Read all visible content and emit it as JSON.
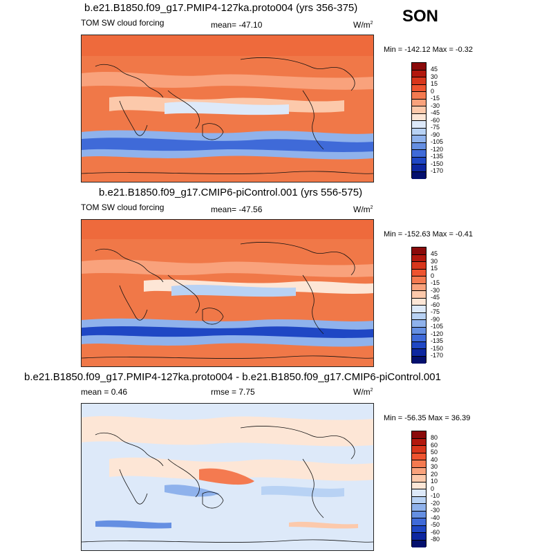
{
  "season": "SON",
  "panels": [
    {
      "title": "b.e21.B1850.f09_g17.PMIP4-127ka.proto004 (yrs 356-375)",
      "left_label": "TOM SW cloud forcing",
      "mid_label": "mean= -47.10",
      "units": "W/m",
      "units_sup": "2",
      "minmax": "Min = -142.12 Max =  -0.32",
      "legend_labels": [
        "45",
        "30",
        "15",
        "0",
        "-15",
        "-30",
        "-45",
        "-60",
        "-75",
        "-90",
        "-105",
        "-120",
        "-135",
        "-150",
        "-170"
      ],
      "legend_colors": [
        "#8a0a0a",
        "#b2180e",
        "#d8361c",
        "#ee5430",
        "#f47a50",
        "#f9a27c",
        "#fcc9ab",
        "#fde6d6",
        "#dde9f9",
        "#b8d2f4",
        "#8fb2ec",
        "#658fe2",
        "#3f6ad8",
        "#1f47c4",
        "#0d27a0",
        "#04106e"
      ]
    },
    {
      "title": "b.e21.B1850.f09_g17.CMIP6-piControl.001 (yrs 556-575)",
      "left_label": "TOM SW cloud forcing",
      "mid_label": "mean= -47.56",
      "units": "W/m",
      "units_sup": "2",
      "minmax": "Min = -152.63 Max =  -0.41",
      "legend_labels": [
        "45",
        "30",
        "15",
        "0",
        "-15",
        "-30",
        "-45",
        "-60",
        "-75",
        "-90",
        "-105",
        "-120",
        "-135",
        "-150",
        "-170"
      ],
      "legend_colors": [
        "#8a0a0a",
        "#b2180e",
        "#d8361c",
        "#ee5430",
        "#f47a50",
        "#f9a27c",
        "#fcc9ab",
        "#fde6d6",
        "#dde9f9",
        "#b8d2f4",
        "#8fb2ec",
        "#658fe2",
        "#3f6ad8",
        "#1f47c4",
        "#0d27a0",
        "#04106e"
      ]
    },
    {
      "title": "b.e21.B1850.f09_g17.PMIP4-127ka.proto004 - b.e21.B1850.f09_g17.CMIP6-piControl.001",
      "left_label": "mean =   0.46",
      "mid_label": "rmse =   7.75",
      "units": "W/m",
      "units_sup": "2",
      "minmax": "Min = -56.35 Max =  36.39",
      "legend_labels": [
        "80",
        "60",
        "50",
        "40",
        "30",
        "20",
        "10",
        "0",
        "-10",
        "-20",
        "-30",
        "-40",
        "-50",
        "-60",
        "-80"
      ],
      "legend_colors": [
        "#8a0a0a",
        "#b2180e",
        "#d8361c",
        "#ee5430",
        "#f47a50",
        "#f9a27c",
        "#fcc9ab",
        "#fde6d6",
        "#dde9f9",
        "#b8d2f4",
        "#8fb2ec",
        "#658fe2",
        "#3f6ad8",
        "#1f47c4",
        "#0d27a0",
        "#04106e"
      ]
    }
  ]
}
